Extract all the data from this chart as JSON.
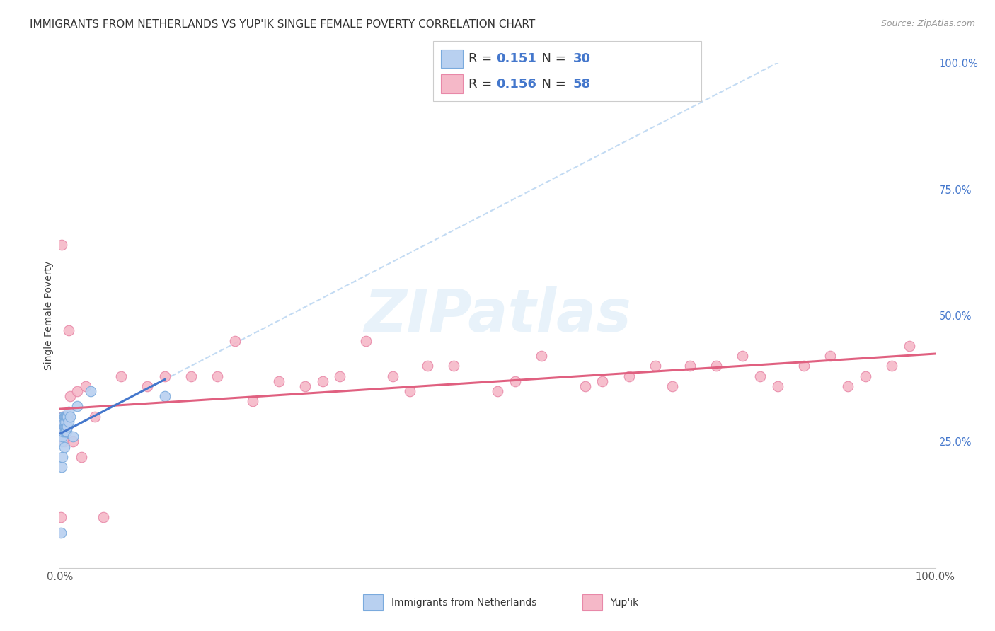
{
  "title": "IMMIGRANTS FROM NETHERLANDS VS YUP'IK SINGLE FEMALE POVERTY CORRELATION CHART",
  "source": "Source: ZipAtlas.com",
  "ylabel": "Single Female Poverty",
  "xlim": [
    0,
    1.0
  ],
  "ylim": [
    0,
    1.0
  ],
  "ytick_positions": [
    0.0,
    0.25,
    0.5,
    0.75,
    1.0
  ],
  "ytick_labels": [
    "",
    "25.0%",
    "50.0%",
    "75.0%",
    "100.0%"
  ],
  "grid_color": "#e0e0e0",
  "background_color": "#ffffff",
  "netherlands_color": "#b8d0f0",
  "netherlands_edge": "#7aaadd",
  "netherlands_R": "0.151",
  "netherlands_N": "30",
  "yupik_color": "#f5b8c8",
  "yupik_edge": "#e888a8",
  "yupik_R": "0.156",
  "yupik_N": "58",
  "blue_color": "#4477cc",
  "pink_color": "#e06080",
  "netherlands_x": [
    0.001,
    0.002,
    0.002,
    0.003,
    0.003,
    0.003,
    0.004,
    0.004,
    0.005,
    0.005,
    0.005,
    0.006,
    0.006,
    0.006,
    0.006,
    0.007,
    0.007,
    0.007,
    0.008,
    0.008,
    0.008,
    0.009,
    0.009,
    0.01,
    0.01,
    0.012,
    0.015,
    0.02,
    0.035,
    0.12
  ],
  "netherlands_y": [
    0.07,
    0.2,
    0.25,
    0.22,
    0.26,
    0.29,
    0.27,
    0.3,
    0.24,
    0.28,
    0.3,
    0.27,
    0.28,
    0.29,
    0.3,
    0.27,
    0.28,
    0.3,
    0.27,
    0.29,
    0.3,
    0.28,
    0.3,
    0.29,
    0.31,
    0.3,
    0.26,
    0.32,
    0.35,
    0.34
  ],
  "yupik_x": [
    0.001,
    0.002,
    0.002,
    0.003,
    0.003,
    0.004,
    0.004,
    0.005,
    0.005,
    0.005,
    0.006,
    0.007,
    0.008,
    0.009,
    0.01,
    0.01,
    0.012,
    0.015,
    0.02,
    0.025,
    0.03,
    0.04,
    0.05,
    0.07,
    0.1,
    0.12,
    0.15,
    0.18,
    0.2,
    0.22,
    0.25,
    0.28,
    0.3,
    0.32,
    0.35,
    0.38,
    0.4,
    0.42,
    0.45,
    0.5,
    0.52,
    0.55,
    0.6,
    0.62,
    0.65,
    0.68,
    0.7,
    0.72,
    0.75,
    0.78,
    0.8,
    0.82,
    0.85,
    0.88,
    0.9,
    0.92,
    0.95,
    0.97
  ],
  "yupik_y": [
    0.1,
    0.64,
    0.27,
    0.28,
    0.3,
    0.27,
    0.29,
    0.25,
    0.28,
    0.3,
    0.29,
    0.28,
    0.29,
    0.28,
    0.47,
    0.3,
    0.34,
    0.25,
    0.35,
    0.22,
    0.36,
    0.3,
    0.1,
    0.38,
    0.36,
    0.38,
    0.38,
    0.38,
    0.45,
    0.33,
    0.37,
    0.36,
    0.37,
    0.38,
    0.45,
    0.38,
    0.35,
    0.4,
    0.4,
    0.35,
    0.37,
    0.42,
    0.36,
    0.37,
    0.38,
    0.4,
    0.36,
    0.4,
    0.4,
    0.42,
    0.38,
    0.36,
    0.4,
    0.42,
    0.36,
    0.38,
    0.4,
    0.44
  ],
  "title_fontsize": 11,
  "ylabel_fontsize": 10,
  "tick_fontsize": 10.5,
  "legend_fontsize": 13,
  "source_fontsize": 9,
  "watermark_fontsize": 60
}
